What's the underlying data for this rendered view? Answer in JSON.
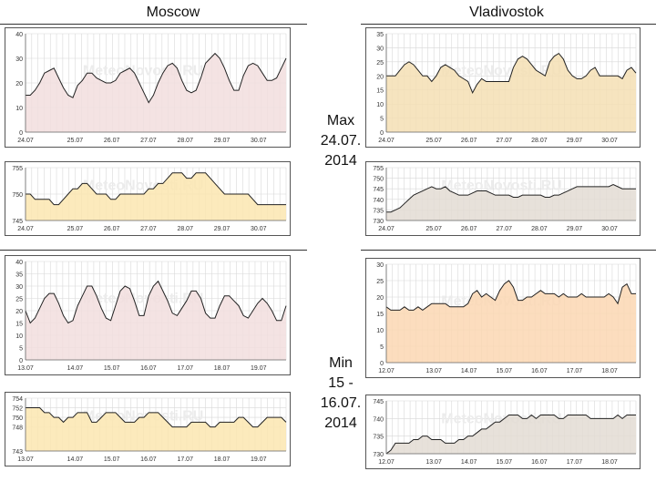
{
  "titles": {
    "left": "Moscow",
    "right": "Vladivostok"
  },
  "labels": {
    "max": [
      "Max",
      "24.07.",
      "2014"
    ],
    "min": [
      "Min",
      "15 -",
      "16.07.",
      "2014"
    ]
  },
  "colors": {
    "temp_fill": "#f2dede",
    "press_fill": "#fbe6b0",
    "temp_fill_vl": "#f4dfb4",
    "press_fill_vl": "#e3dcd3",
    "temp_fill_min_vl": "#fbd7b3",
    "grid": "#d8d8d8",
    "line": "#222222",
    "axis": "#666666"
  },
  "chart_data": [
    {
      "id": "moscow-max-temp",
      "type": "area",
      "title": "Moscow",
      "watermark": "MeteoNovosti.RU",
      "ylim": [
        0,
        40
      ],
      "yticks": [
        0,
        10,
        20,
        30,
        40
      ],
      "xticks": [
        "24.07",
        "25.07",
        "26.07",
        "27.07",
        "28.07",
        "29.07",
        "30.07"
      ],
      "values": [
        15,
        15,
        17,
        20,
        24,
        25,
        26,
        22,
        18,
        15,
        14,
        19,
        21,
        24,
        24,
        22,
        21,
        20,
        20,
        21,
        24,
        25,
        26,
        24,
        20,
        16,
        12,
        15,
        20,
        24,
        27,
        28,
        26,
        21,
        17,
        16,
        17,
        22,
        28,
        30,
        32,
        30,
        26,
        21,
        17,
        17,
        23,
        27,
        28,
        27,
        24,
        21,
        21,
        22,
        26,
        30
      ]
    },
    {
      "id": "moscow-max-press",
      "type": "area",
      "watermark": "MeteoNovosti.RU",
      "ylim": [
        745,
        755
      ],
      "yticks": [
        745,
        750,
        755
      ],
      "xticks": [
        "24.07",
        "25.07",
        "26.07",
        "27.07",
        "28.07",
        "29.07",
        "30.07"
      ],
      "values": [
        750,
        750,
        749,
        749,
        749,
        749,
        748,
        748,
        749,
        750,
        751,
        751,
        752,
        752,
        751,
        750,
        750,
        750,
        749,
        749,
        750,
        750,
        750,
        750,
        750,
        750,
        751,
        751,
        752,
        752,
        753,
        754,
        754,
        754,
        753,
        753,
        754,
        754,
        754,
        753,
        752,
        751,
        750,
        750,
        750,
        750,
        750,
        750,
        749,
        748,
        748,
        748,
        748,
        748,
        748,
        748
      ]
    },
    {
      "id": "vladivostok-max-temp",
      "type": "area",
      "title": "Vladivostok",
      "watermark": "MeteoNovosti.RU",
      "ylim": [
        0,
        35
      ],
      "yticks": [
        0,
        5,
        10,
        15,
        20,
        25,
        30,
        35
      ],
      "xticks": [
        "24.07",
        "25.07",
        "26.07",
        "27.07",
        "28.07",
        "29.07",
        "30.07"
      ],
      "values": [
        20,
        20,
        20,
        22,
        24,
        25,
        24,
        22,
        20,
        20,
        18,
        20,
        23,
        24,
        23,
        22,
        20,
        19,
        18,
        14,
        17,
        19,
        18,
        18,
        18,
        18,
        18,
        18,
        23,
        26,
        27,
        26,
        24,
        22,
        21,
        20,
        25,
        27,
        28,
        26,
        22,
        20,
        19,
        19,
        20,
        22,
        23,
        20,
        20,
        20,
        20,
        20,
        19,
        22,
        23,
        21
      ]
    },
    {
      "id": "vladivostok-max-press",
      "type": "area",
      "watermark": "MeteoNovosti.RU",
      "ylim": [
        730,
        755
      ],
      "yticks": [
        730,
        735,
        740,
        745,
        750,
        755
      ],
      "xticks": [
        "24.07",
        "25.07",
        "26.07",
        "27.07",
        "28.07",
        "29.07",
        "30.07"
      ],
      "values": [
        734,
        734,
        735,
        736,
        738,
        740,
        742,
        743,
        744,
        745,
        746,
        745,
        745,
        746,
        744,
        743,
        742,
        742,
        742,
        743,
        744,
        744,
        744,
        743,
        742,
        742,
        742,
        742,
        741,
        741,
        742,
        742,
        742,
        742,
        742,
        741,
        741,
        742,
        742,
        743,
        744,
        745,
        746,
        746,
        746,
        746,
        746,
        746,
        746,
        746,
        747,
        746,
        745,
        745,
        745,
        745
      ]
    },
    {
      "id": "moscow-min-temp",
      "type": "area",
      "title": "Moscow",
      "watermark": "MeteoNovosti.RU",
      "ylim": [
        0,
        40
      ],
      "yticks": [
        0,
        5,
        10,
        15,
        20,
        25,
        30,
        35,
        40
      ],
      "xticks": [
        "13.07",
        "14.07",
        "15.07",
        "16.07",
        "17.07",
        "18.07",
        "19.07"
      ],
      "values": [
        20,
        15,
        17,
        21,
        25,
        27,
        27,
        23,
        18,
        15,
        16,
        22,
        26,
        30,
        30,
        26,
        21,
        17,
        16,
        22,
        28,
        30,
        29,
        24,
        18,
        18,
        26,
        30,
        32,
        28,
        24,
        19,
        18,
        21,
        24,
        28,
        28,
        25,
        19,
        17,
        17,
        22,
        26,
        26,
        24,
        22,
        18,
        17,
        20,
        23,
        25,
        23,
        20,
        16,
        16,
        22
      ]
    },
    {
      "id": "moscow-min-press",
      "type": "area",
      "watermark": "MeteoNovosti.RU",
      "ylim": [
        743,
        754
      ],
      "yticks": [
        743,
        748,
        750,
        752,
        754
      ],
      "xticks": [
        "13.07",
        "14.07",
        "15.07",
        "16.07",
        "17.07",
        "18.07",
        "19.07"
      ],
      "values": [
        752,
        752,
        752,
        752,
        751,
        751,
        750,
        750,
        749,
        750,
        750,
        751,
        751,
        751,
        749,
        749,
        750,
        751,
        751,
        751,
        750,
        749,
        749,
        749,
        750,
        750,
        751,
        751,
        751,
        750,
        749,
        748,
        748,
        748,
        748,
        749,
        749,
        749,
        749,
        748,
        748,
        749,
        749,
        749,
        749,
        750,
        750,
        749,
        748,
        748,
        749,
        750,
        750,
        750,
        750,
        749
      ]
    },
    {
      "id": "vladivostok-min-temp",
      "type": "area",
      "title": "Vladivostok",
      "watermark": "MeteoNovosti.RU",
      "ylim": [
        0,
        30
      ],
      "yticks": [
        0,
        5,
        10,
        15,
        20,
        25,
        30
      ],
      "xticks": [
        "12.07",
        "13.07",
        "14.07",
        "15.07",
        "16.07",
        "17.07",
        "18.07"
      ],
      "values": [
        17,
        16,
        16,
        16,
        17,
        16,
        16,
        17,
        16,
        17,
        18,
        18,
        18,
        18,
        17,
        17,
        17,
        17,
        18,
        21,
        22,
        20,
        21,
        20,
        19,
        22,
        24,
        25,
        23,
        19,
        19,
        20,
        20,
        21,
        22,
        21,
        21,
        21,
        20,
        21,
        20,
        20,
        20,
        21,
        20,
        20,
        20,
        20,
        20,
        21,
        20,
        18,
        23,
        24,
        21,
        21
      ]
    },
    {
      "id": "vladivostok-min-press",
      "type": "area",
      "watermark": "MeteoNovosti.RU",
      "ylim": [
        730,
        745
      ],
      "yticks": [
        730,
        735,
        740,
        745
      ],
      "xticks": [
        "12.07",
        "13.07",
        "14.07",
        "15.07",
        "16.07",
        "17.07",
        "18.07"
      ],
      "values": [
        730,
        731,
        733,
        733,
        733,
        733,
        734,
        734,
        735,
        735,
        734,
        734,
        734,
        733,
        733,
        733,
        734,
        734,
        735,
        735,
        736,
        737,
        737,
        738,
        739,
        739,
        740,
        741,
        741,
        741,
        740,
        740,
        741,
        740,
        741,
        741,
        741,
        741,
        740,
        740,
        741,
        741,
        741,
        741,
        741,
        740,
        740,
        740,
        740,
        740,
        740,
        741,
        740,
        741,
        741,
        741
      ]
    }
  ]
}
